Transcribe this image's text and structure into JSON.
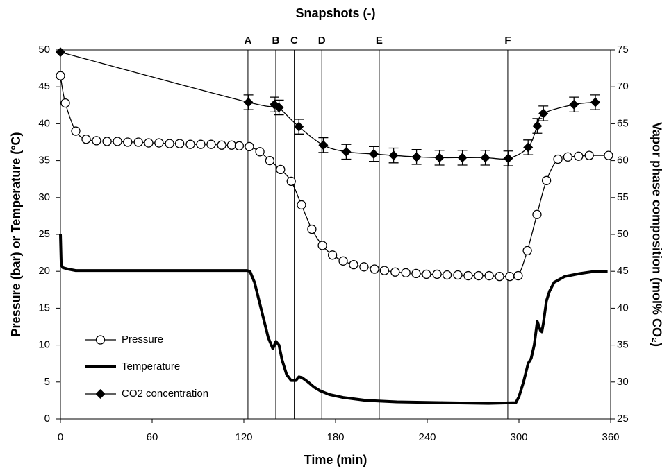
{
  "chart_data": {
    "type": "line",
    "title": "Snapshots (-)",
    "xlabel": "Time (min)",
    "ylabel": "Pressure (bar) or Temperature (°C)",
    "y2label": "Vapor phase composition (mol% CO₂)",
    "xlim": [
      0,
      360
    ],
    "xticks": [
      0,
      60,
      120,
      180,
      240,
      300,
      360
    ],
    "ylim": [
      0,
      50
    ],
    "yticks": [
      0,
      5,
      10,
      15,
      20,
      25,
      30,
      35,
      40,
      45,
      50
    ],
    "y2lim": [
      25,
      75
    ],
    "y2ticks": [
      25,
      30,
      35,
      40,
      45,
      50,
      55,
      60,
      65,
      70,
      75
    ],
    "legend": "lower left",
    "snapshots": [
      {
        "label": "A",
        "x": 122.7
      },
      {
        "label": "B",
        "x": 140.9
      },
      {
        "label": "C",
        "x": 153
      },
      {
        "label": "D",
        "x": 171
      },
      {
        "label": "E",
        "x": 208.6
      },
      {
        "label": "F",
        "x": 292.7
      }
    ],
    "series": [
      {
        "name": "Pressure",
        "color": "#000000",
        "marker": "circle",
        "smooth": true,
        "line_width": 1.3,
        "x": [
          0,
          3.2,
          10,
          16.8,
          23.6,
          30.5,
          37.3,
          44,
          51,
          57.7,
          64.5,
          71.4,
          78,
          85,
          91.8,
          98.6,
          105.5,
          112,
          117,
          123.6,
          130.5,
          137,
          144,
          151,
          157.7,
          164.5,
          171.4,
          178,
          185,
          191.8,
          198.6,
          205.5,
          212,
          219,
          226,
          232.7,
          239.5,
          246.4,
          253,
          260,
          266.8,
          273.6,
          280.5,
          287.3,
          294,
          299.5,
          305.5,
          311.8,
          318,
          325.5,
          332,
          339,
          346,
          358.6
        ],
        "values": [
          46.5,
          42.8,
          39,
          37.9,
          37.7,
          37.6,
          37.6,
          37.5,
          37.5,
          37.4,
          37.4,
          37.3,
          37.3,
          37.2,
          37.2,
          37.2,
          37.1,
          37.1,
          37,
          36.9,
          36.2,
          35,
          33.8,
          32.2,
          29,
          25.7,
          23.5,
          22.2,
          21.4,
          20.9,
          20.6,
          20.3,
          20.1,
          19.9,
          19.8,
          19.7,
          19.6,
          19.6,
          19.5,
          19.5,
          19.4,
          19.4,
          19.4,
          19.3,
          19.3,
          19.4,
          22.8,
          27.7,
          32.3,
          35.2,
          35.5,
          35.6,
          35.7,
          35.7
        ]
      },
      {
        "name": "Temperature",
        "color": "#000000",
        "marker": "none",
        "smooth": false,
        "line_width": 4,
        "x": [
          0,
          0.5,
          1.5,
          5,
          10,
          30,
          60,
          100,
          122,
          124,
          127,
          130,
          133,
          136,
          139,
          141,
          143,
          145,
          148,
          151,
          154,
          156,
          158,
          162,
          166,
          170,
          176,
          185,
          200,
          220,
          250,
          280,
          298,
          300,
          303,
          306,
          308,
          310,
          312,
          314,
          315,
          316,
          318,
          320,
          323,
          330,
          340,
          350,
          358
        ],
        "values": [
          25,
          21,
          20.5,
          20.3,
          20.1,
          20.1,
          20.1,
          20.1,
          20.1,
          20,
          18.5,
          16,
          13.5,
          11,
          9.5,
          10.5,
          10,
          8,
          6,
          5.2,
          5.2,
          5.7,
          5.6,
          5,
          4.3,
          3.8,
          3.3,
          2.9,
          2.5,
          2.3,
          2.2,
          2.1,
          2.2,
          3,
          5,
          7.5,
          8.2,
          10,
          13.2,
          12,
          11.8,
          13,
          16,
          17.3,
          18.5,
          19.3,
          19.7,
          20,
          20
        ]
      },
      {
        "name": "CO2 concentration",
        "color": "#000000",
        "marker": "diamond",
        "smooth": true,
        "line_width": 1.3,
        "axis": "y2",
        "x": [
          0,
          123,
          140,
          143,
          156,
          172,
          187,
          205,
          218,
          233,
          248,
          263,
          278,
          293,
          306,
          312,
          316,
          336,
          350
        ],
        "values": [
          74.7,
          67.9,
          67.6,
          67.2,
          64.6,
          62.1,
          61.2,
          60.9,
          60.7,
          60.5,
          60.4,
          60.4,
          60.4,
          60.3,
          61.8,
          64.7,
          66.4,
          67.6,
          67.9
        ],
        "errors": [
          0,
          1,
          1,
          1,
          1,
          1,
          1,
          1,
          1,
          1,
          1,
          1,
          1,
          1,
          1,
          1,
          1,
          1,
          1
        ]
      }
    ]
  }
}
